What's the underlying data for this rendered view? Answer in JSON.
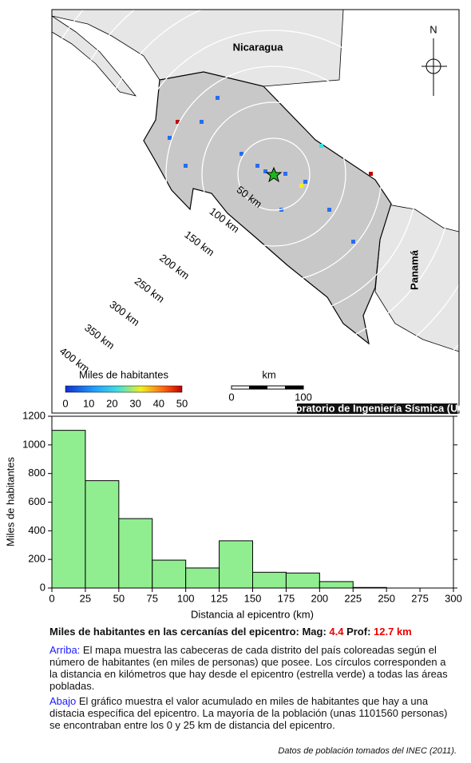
{
  "map": {
    "country_top": "Nicaragua",
    "country_right": "Panamá",
    "north": "N",
    "circle_labels": [
      "50 km",
      "100 km",
      "150 km",
      "200 km",
      "250 km",
      "300 km",
      "350 km",
      "400 km"
    ],
    "colorbar": {
      "label": "Miles de habitantes",
      "ticks": [
        0,
        10,
        20,
        30,
        40,
        50
      ]
    },
    "scale": {
      "label": "km",
      "ticks": [
        0,
        100
      ]
    },
    "credit": "Laboratorio de Ingeniería Sísmica (UCR)"
  },
  "chart_data": {
    "type": "histogram",
    "xlabel": "Distancia al epicentro (km)",
    "ylabel": "Miles de habitantes",
    "bins": [
      0,
      25,
      50,
      75,
      100,
      125,
      150,
      175,
      200,
      225,
      250,
      275,
      300
    ],
    "values": [
      1101.56,
      750,
      485,
      195,
      140,
      330,
      110,
      105,
      45,
      4,
      0,
      0
    ],
    "color": "#90ee90",
    "xlim": [
      0,
      300
    ],
    "ylim": [
      0,
      1200
    ],
    "xticks": [
      0,
      25,
      50,
      75,
      100,
      125,
      150,
      175,
      200,
      225,
      250,
      275,
      300
    ],
    "yticks": [
      0,
      200,
      400,
      600,
      800,
      1000,
      1200
    ]
  },
  "caption": {
    "title": "Miles de habitantes en las cercanías del epicentro: Mag: ",
    "mag": 4.4,
    "prof_label": " Prof: ",
    "prof": "12.7 km",
    "p1_lead": "Arriba:",
    "p1": " El mapa muestra las cabeceras de cada distrito del país coloreadas según el número de habitantes (en miles de personas) que posee.  Los círculos corresponden a la distancia en kilómetros que hay desde el epicentro (estrella verde) a todas las áreas pobladas.",
    "p2_lead": "Abajo",
    "p2": " El gráfico muestra el valor acumulado en miles de habitantes que hay a una distacia específica del epicentro.  La mayoría de la población (unas 1101560 personas) se encontraban entre los 0 y 25 km de distancia del epicentro.",
    "source": "Datos de población tomados del INEC (2011)."
  }
}
